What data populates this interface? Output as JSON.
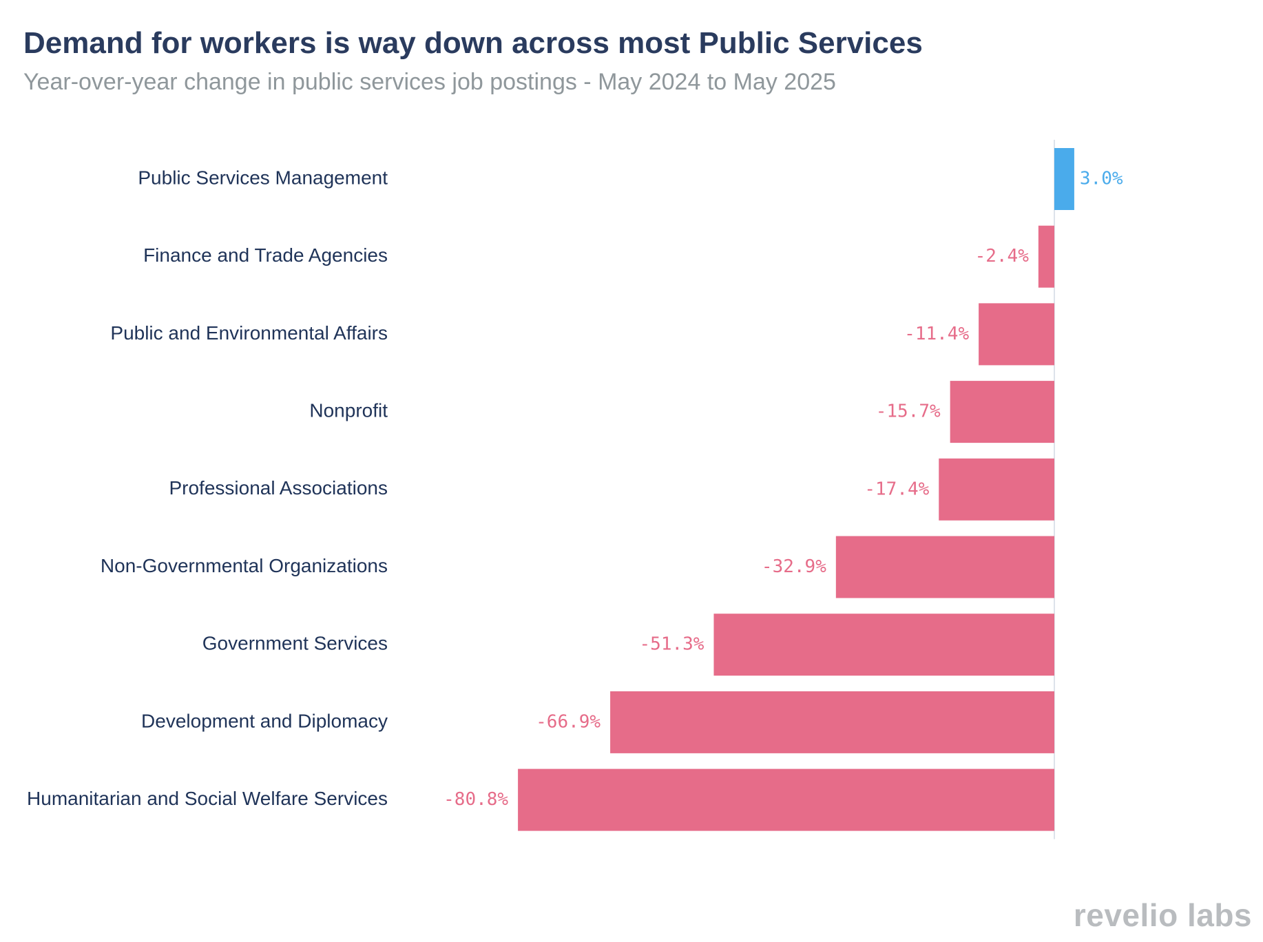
{
  "header": {
    "title": "Demand for workers is way down across most Public Services",
    "subtitle": "Year-over-year change in public services job postings - May 2024 to May 2025"
  },
  "logo": {
    "text": "revelio labs"
  },
  "colors": {
    "positive": "#4aabeb",
    "negative": "#e66c89",
    "baseline": "#dde3ea"
  },
  "chart_data": {
    "type": "bar",
    "orientation": "horizontal",
    "title": "Demand for workers is way down across most Public Services",
    "subtitle": "Year-over-year change in public services job postings - May 2024 to May 2025",
    "xlabel": "",
    "ylabel": "",
    "grid": false,
    "categories": [
      "Public Services Management",
      "Finance and Trade Agencies",
      "Public and Environmental Affairs",
      "Nonprofit",
      "Professional Associations",
      "Non-Governmental Organizations",
      "Government Services",
      "Development and Diplomacy",
      "Humanitarian and Social Welfare Services"
    ],
    "values": [
      3.0,
      -2.4,
      -11.4,
      -15.7,
      -17.4,
      -32.9,
      -51.3,
      -66.9,
      -80.8
    ],
    "value_labels": [
      "3.0%",
      "-2.4%",
      "-11.4%",
      "-15.7%",
      "-17.4%",
      "-32.9%",
      "-51.3%",
      "-66.9%",
      "-80.8%"
    ],
    "xlim": [
      -80.8,
      3.0
    ]
  }
}
